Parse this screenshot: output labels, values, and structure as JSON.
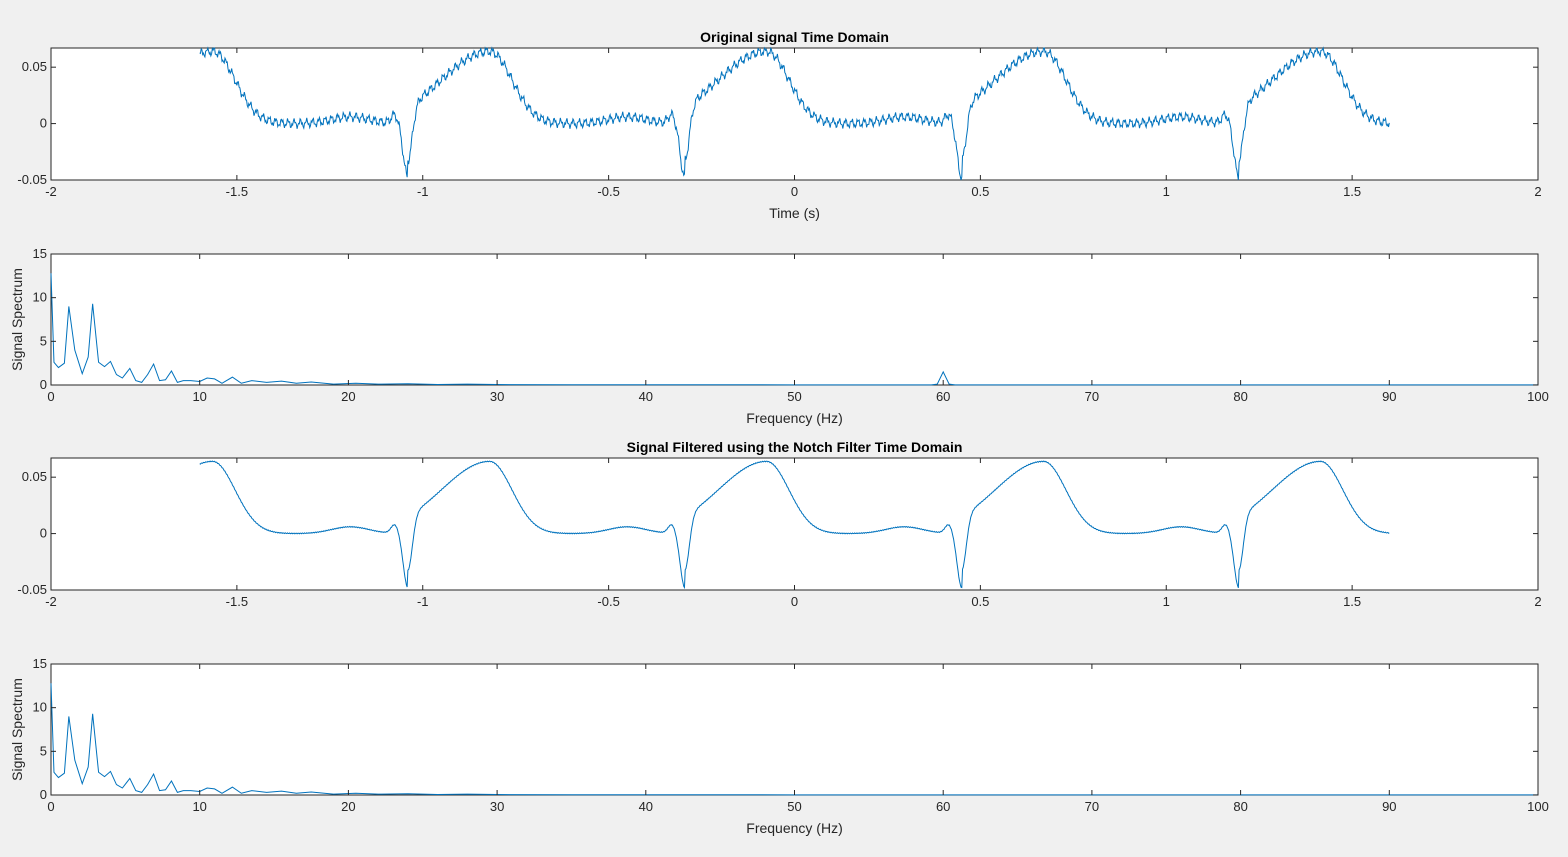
{
  "colors": {
    "background": "#f0f0f0",
    "axes_bg": "#ffffff",
    "axis": "#262626",
    "series": "#0072bd"
  },
  "chart_data": [
    {
      "type": "line",
      "title": "Original signal Time Domain",
      "xlabel": "Time (s)",
      "ylabel": "",
      "xlim": [
        -2,
        2
      ],
      "ylim": [
        -0.05,
        0.067
      ],
      "xticks": [
        -2,
        -1.5,
        -1,
        -0.5,
        0,
        0.5,
        1,
        1.5,
        2
      ],
      "xtick_labels": [
        "-2",
        "-1.5",
        "-1",
        "-0.5",
        "0",
        "0.5",
        "1",
        "1.5",
        "2"
      ],
      "yticks": [
        -0.05,
        0,
        0.05
      ],
      "ytick_labels": [
        "-0.05",
        "0",
        "0.05"
      ],
      "grid": false,
      "series": [
        {
          "name": "original",
          "x_range": [
            -1.6,
            1.6
          ],
          "period_s": 0.745,
          "r_peak_times": [
            -1.04,
            -0.305,
            0.425,
            1.18
          ],
          "t_peak_times": [
            -1.53,
            -0.82,
            -0.095,
            0.64,
            1.39
          ],
          "noise_hz": 60,
          "noise_amplitude": 0.003
        }
      ]
    },
    {
      "type": "line",
      "title": "",
      "xlabel": "Frequency (Hz)",
      "ylabel": "Signal Spectrum",
      "xlim": [
        0,
        100
      ],
      "ylim": [
        0,
        15
      ],
      "xticks": [
        0,
        10,
        20,
        30,
        40,
        50,
        60,
        70,
        80,
        90,
        100
      ],
      "xtick_labels": [
        "0",
        "10",
        "20",
        "30",
        "40",
        "50",
        "60",
        "70",
        "80",
        "90",
        "100"
      ],
      "yticks": [
        0,
        5,
        10,
        15
      ],
      "ytick_labels": [
        "0",
        "5",
        "10",
        "15"
      ],
      "grid": false,
      "series": [
        {
          "name": "spectrum",
          "x": [
            0,
            0.2,
            0.5,
            0.9,
            1.2,
            1.6,
            2.1,
            2.5,
            2.8,
            3.2,
            3.6,
            4.0,
            4.4,
            4.8,
            5.3,
            5.7,
            6.1,
            6.5,
            6.9,
            7.3,
            7.7,
            8.1,
            8.5,
            8.9,
            9.4,
            10.0,
            10.5,
            11.0,
            11.5,
            12.2,
            12.8,
            13.5,
            14.5,
            15.5,
            16.5,
            17.5,
            19.0,
            20.5,
            22.0,
            24.0,
            26.0,
            28.0,
            30.0,
            35.0,
            40.0,
            50.0,
            59.2,
            59.6,
            60.0,
            60.4,
            60.8,
            70.0,
            80.0,
            90.0,
            100.0
          ],
          "y": [
            12.8,
            2.6,
            2.0,
            2.5,
            9.0,
            4.0,
            1.3,
            3.2,
            9.3,
            2.6,
            2.1,
            2.7,
            1.2,
            0.8,
            1.9,
            0.5,
            0.3,
            1.2,
            2.4,
            0.5,
            0.6,
            1.6,
            0.3,
            0.5,
            0.5,
            0.4,
            0.8,
            0.7,
            0.2,
            0.9,
            0.2,
            0.5,
            0.3,
            0.45,
            0.2,
            0.35,
            0.1,
            0.2,
            0.1,
            0.15,
            0.05,
            0.1,
            0.05,
            0.03,
            0.03,
            0.02,
            0.02,
            0.1,
            1.5,
            0.1,
            0.02,
            0.02,
            0.02,
            0.02,
            0.02
          ]
        }
      ]
    },
    {
      "type": "line",
      "title": "Signal Filtered using the Notch Filter Time Domain",
      "xlabel": "",
      "ylabel": "",
      "xlim": [
        -2,
        2
      ],
      "ylim": [
        -0.05,
        0.067
      ],
      "xticks": [
        -2,
        -1.5,
        -1,
        -0.5,
        0,
        0.5,
        1,
        1.5,
        2
      ],
      "xtick_labels": [
        "-2",
        "-1.5",
        "-1",
        "-0.5",
        "0",
        "0.5",
        "1",
        "1.5",
        "2"
      ],
      "yticks": [
        -0.05,
        0,
        0.05
      ],
      "ytick_labels": [
        "-0.05",
        "0",
        "0.05"
      ],
      "grid": false,
      "series": [
        {
          "name": "filtered",
          "x_range": [
            -1.6,
            1.6
          ],
          "period_s": 0.745,
          "r_peak_times": [
            -1.04,
            -0.305,
            0.425,
            1.18
          ],
          "t_peak_times": [
            -1.53,
            -0.82,
            -0.095,
            0.64,
            1.39
          ],
          "noise_hz": 0,
          "noise_amplitude": 0.0006
        }
      ]
    },
    {
      "type": "line",
      "title": "",
      "xlabel": "Frequency (Hz)",
      "ylabel": "Signal Spectrum",
      "xlim": [
        0,
        100
      ],
      "ylim": [
        0,
        15
      ],
      "xticks": [
        0,
        10,
        20,
        30,
        40,
        50,
        60,
        70,
        80,
        90,
        100
      ],
      "xtick_labels": [
        "0",
        "10",
        "20",
        "30",
        "40",
        "50",
        "60",
        "70",
        "80",
        "90",
        "100"
      ],
      "yticks": [
        0,
        5,
        10,
        15
      ],
      "ytick_labels": [
        "0",
        "5",
        "10",
        "15"
      ],
      "grid": false,
      "series": [
        {
          "name": "spectrum_filtered",
          "x": [
            0,
            0.2,
            0.5,
            0.9,
            1.2,
            1.6,
            2.1,
            2.5,
            2.8,
            3.2,
            3.6,
            4.0,
            4.4,
            4.8,
            5.3,
            5.7,
            6.1,
            6.5,
            6.9,
            7.3,
            7.7,
            8.1,
            8.5,
            8.9,
            9.4,
            10.0,
            10.5,
            11.0,
            11.5,
            12.2,
            12.8,
            13.5,
            14.5,
            15.5,
            16.5,
            17.5,
            19.0,
            20.5,
            22.0,
            24.0,
            26.0,
            28.0,
            30.0,
            35.0,
            40.0,
            50.0,
            60.0,
            70.0,
            80.0,
            90.0,
            100.0
          ],
          "y": [
            12.8,
            2.6,
            2.0,
            2.5,
            9.0,
            4.0,
            1.3,
            3.2,
            9.3,
            2.6,
            2.1,
            2.7,
            1.2,
            0.8,
            1.9,
            0.5,
            0.3,
            1.2,
            2.4,
            0.5,
            0.6,
            1.6,
            0.3,
            0.5,
            0.5,
            0.4,
            0.8,
            0.7,
            0.2,
            0.9,
            0.2,
            0.5,
            0.3,
            0.45,
            0.2,
            0.35,
            0.1,
            0.2,
            0.1,
            0.15,
            0.05,
            0.1,
            0.05,
            0.03,
            0.03,
            0.02,
            0.02,
            0.02,
            0.02,
            0.02,
            0.02
          ]
        }
      ]
    }
  ]
}
